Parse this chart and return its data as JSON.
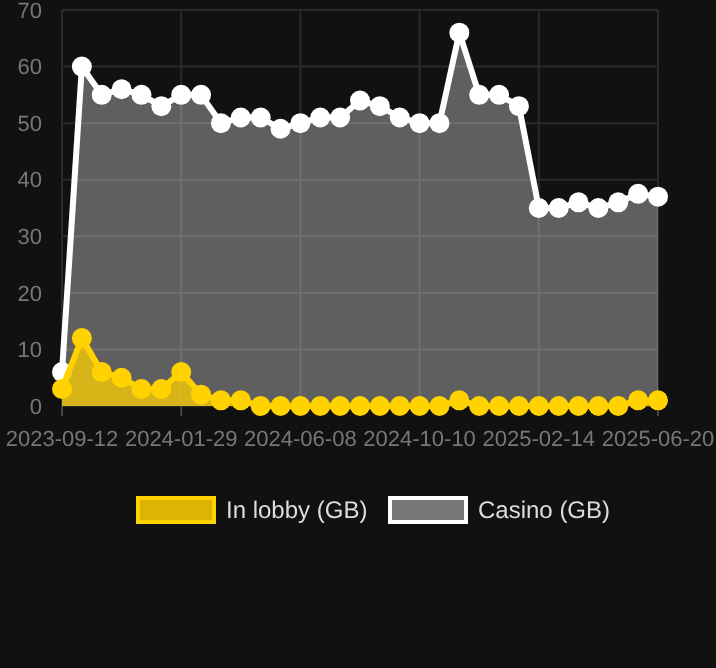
{
  "chart_data": {
    "type": "area",
    "categories": [
      "2023-09-12",
      null,
      null,
      null,
      null,
      null,
      "2024-01-29",
      null,
      null,
      null,
      null,
      null,
      "2024-06-08",
      null,
      null,
      null,
      null,
      null,
      "2024-10-10",
      null,
      null,
      null,
      null,
      null,
      "2025-02-14",
      null,
      null,
      null,
      null,
      null,
      "2025-06-20"
    ],
    "series": [
      {
        "name": "In lobby (GB)",
        "color": "#ffd200",
        "values": [
          3,
          12,
          6,
          5,
          3,
          3,
          6,
          2,
          1,
          1,
          0,
          0,
          0,
          0,
          0,
          0,
          0,
          0,
          0,
          0,
          1,
          0,
          0,
          0,
          0,
          0,
          0,
          0,
          0,
          1,
          1
        ]
      },
      {
        "name": "Casino (GB)",
        "color": "#ffffff",
        "values": [
          6,
          60,
          55,
          56,
          55,
          53,
          55,
          55,
          50,
          51,
          51,
          49,
          50,
          51,
          51,
          54,
          53,
          51,
          50,
          50,
          66,
          55,
          55,
          53,
          35,
          35,
          36,
          35,
          36,
          37.5,
          37
        ]
      }
    ],
    "ylim": [
      0,
      70
    ],
    "yticks": [
      0,
      10,
      20,
      30,
      40,
      50,
      60,
      70
    ],
    "grid": true,
    "legend": "bottom",
    "marker": "circle"
  }
}
